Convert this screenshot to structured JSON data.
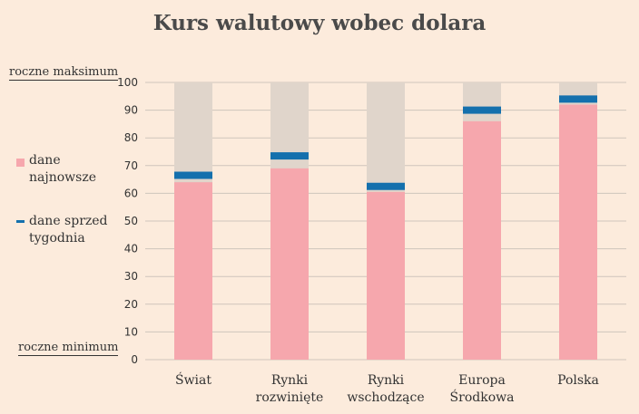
{
  "title": "Kurs walutowy wobec dolara",
  "labels": {
    "max": "roczne maksimum",
    "min": "roczne minimum"
  },
  "legend": {
    "latest": "dane najnowsze",
    "previous": "dane sprzed tygodnia"
  },
  "colors": {
    "background": "#fcebdc",
    "range_bar": "#e0d5cb",
    "latest": "#f6a7ad",
    "previous": "#1470ad",
    "grid": "#cfc5bc"
  },
  "chart_data": {
    "type": "bar",
    "categories": [
      "Świat",
      "Rynki rozwinięte",
      "Rynki wschodzące",
      "Europa Środkowa",
      "Polska"
    ],
    "series": [
      {
        "name": "dane najnowsze",
        "values": [
          64,
          69,
          60.5,
          86,
          92
        ]
      },
      {
        "name": "dane sprzed tygodnia",
        "values": [
          66.5,
          73.5,
          62.5,
          90,
          94
        ]
      }
    ],
    "range": [
      0,
      100
    ],
    "ylim": [
      0,
      100
    ],
    "yticks": [
      0,
      10,
      20,
      30,
      40,
      50,
      60,
      70,
      80,
      90,
      100
    ],
    "grid": true,
    "legend_position": "left"
  }
}
